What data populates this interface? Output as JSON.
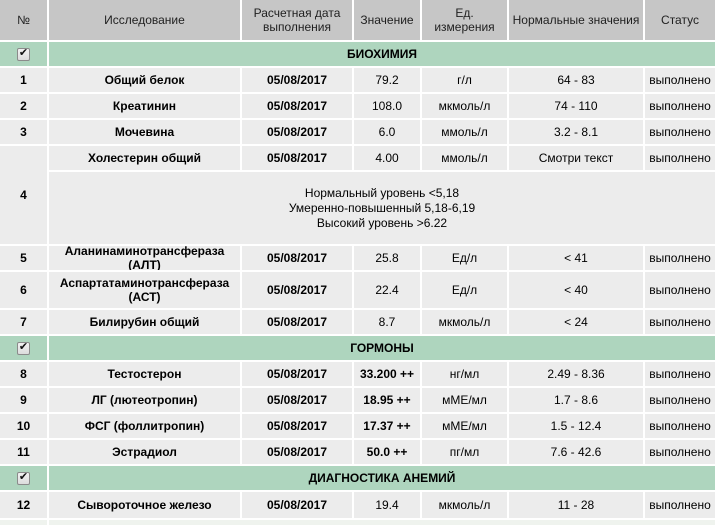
{
  "colors": {
    "section_green": "#aed5be",
    "header_gray": "#c6c6c6",
    "row_gray": "#ececec",
    "gridline_white": "#ffffff"
  },
  "icons": {
    "checkbox_checked": "✔"
  },
  "table": {
    "headers": [
      "№",
      "Исследование",
      "Расчетная дата выполнения",
      "Значение",
      "Ед. измерения",
      "Нормальные значения",
      "Статус"
    ],
    "sections": [
      {
        "title": "БИОХИМИЯ"
      },
      {
        "title": "ГОРМОНЫ"
      },
      {
        "title": "ДИАГНОСТИКА АНЕМИЙ"
      }
    ],
    "rows": [
      {
        "num": "1",
        "name": "Общий белок",
        "date": "05/08/2017",
        "value": "79.2",
        "unit": "г/л",
        "normal": "64 - 83",
        "status": "выполнено"
      },
      {
        "num": "2",
        "name": "Креатинин",
        "date": "05/08/2017",
        "value": "108.0",
        "unit": "мкмоль/л",
        "normal": "74 - 110",
        "status": "выполнено"
      },
      {
        "num": "3",
        "name": "Мочевина",
        "date": "05/08/2017",
        "value": "6.0",
        "unit": "ммоль/л",
        "normal": "3.2 - 8.1",
        "status": "выполнено"
      },
      {
        "num": "4",
        "name": "Холестерин общий",
        "date": "05/08/2017",
        "value": "4.00",
        "unit": "ммоль/л",
        "normal": "Смотри текст",
        "status": "выполнено",
        "comment": [
          "Нормальный уровень <5,18",
          "Умеренно-повышенный 5,18-6,19",
          "Высокий уровень >6.22"
        ]
      },
      {
        "num": "5",
        "name": "Аланинаминотрансфераза (АЛТ)",
        "date": "05/08/2017",
        "value": "25.8",
        "unit": "Ед/л",
        "normal": "< 41",
        "status": "выполнено"
      },
      {
        "num": "6",
        "name": "Аспартатаминотрансфераза (АСТ)",
        "date": "05/08/2017",
        "value": "22.4",
        "unit": "Ед/л",
        "normal": "< 40",
        "status": "выполнено"
      },
      {
        "num": "7",
        "name": "Билирубин общий",
        "date": "05/08/2017",
        "value": "8.7",
        "unit": "мкмоль/л",
        "normal": "< 24",
        "status": "выполнено"
      },
      {
        "num": "8",
        "name": "Тестостерон",
        "date": "05/08/2017",
        "value": "33.200 ++",
        "unit": "нг/мл",
        "normal": "2.49 - 8.36",
        "status": "выполнено"
      },
      {
        "num": "9",
        "name": "ЛГ (лютеотропин)",
        "date": "05/08/2017",
        "value": "18.95 ++",
        "unit": "мМЕ/мл",
        "normal": "1.7 - 8.6",
        "status": "выполнено"
      },
      {
        "num": "10",
        "name": "ФСГ (фоллитропин)",
        "date": "05/08/2017",
        "value": "17.37 ++",
        "unit": "мМЕ/мл",
        "normal": "1.5 - 12.4",
        "status": "выполнено"
      },
      {
        "num": "11",
        "name": "Эстрадиол",
        "date": "05/08/2017",
        "value": "50.0 ++",
        "unit": "пг/мл",
        "normal": "7.6 - 42.6",
        "status": "выполнено"
      },
      {
        "num": "12",
        "name": "Сывороточное железо",
        "date": "05/08/2017",
        "value": "19.4",
        "unit": "мкмоль/л",
        "normal": "11 - 28",
        "status": "выполнено"
      }
    ]
  }
}
